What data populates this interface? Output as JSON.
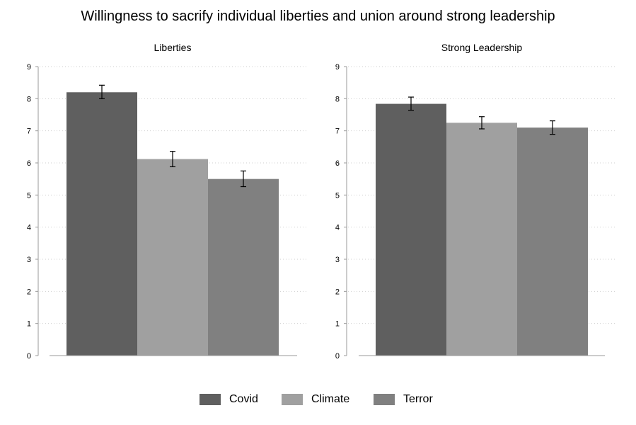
{
  "title": "Willingness to sacrify individual liberties and union around strong leadership",
  "chart_data": [
    {
      "type": "bar",
      "title": "Liberties",
      "categories": [
        "Covid",
        "Climate",
        "Terror"
      ],
      "values": [
        8.2,
        6.12,
        5.5
      ],
      "error_low": [
        8.0,
        5.88,
        5.26
      ],
      "error_high": [
        8.42,
        6.36,
        5.75
      ],
      "ylim": [
        0,
        9
      ],
      "yticks": [
        "0",
        "1",
        "2",
        "3",
        "4",
        "5",
        "6",
        "7",
        "8",
        "9"
      ],
      "grid": "dotted horizontal"
    },
    {
      "type": "bar",
      "title": "Strong Leadership",
      "categories": [
        "Covid",
        "Climate",
        "Terror"
      ],
      "values": [
        7.84,
        7.25,
        7.1
      ],
      "error_low": [
        7.64,
        7.06,
        6.89
      ],
      "error_high": [
        8.05,
        7.44,
        7.31
      ],
      "ylim": [
        0,
        9
      ],
      "yticks": [
        "0",
        "1",
        "2",
        "3",
        "4",
        "5",
        "6",
        "7",
        "8",
        "9"
      ],
      "grid": "dotted horizontal"
    }
  ],
  "legend": {
    "position": "bottom",
    "items": [
      {
        "label": "Covid",
        "color": "#5f5f5f"
      },
      {
        "label": "Climate",
        "color": "#a0a0a0"
      },
      {
        "label": "Terror",
        "color": "#808080"
      }
    ]
  }
}
